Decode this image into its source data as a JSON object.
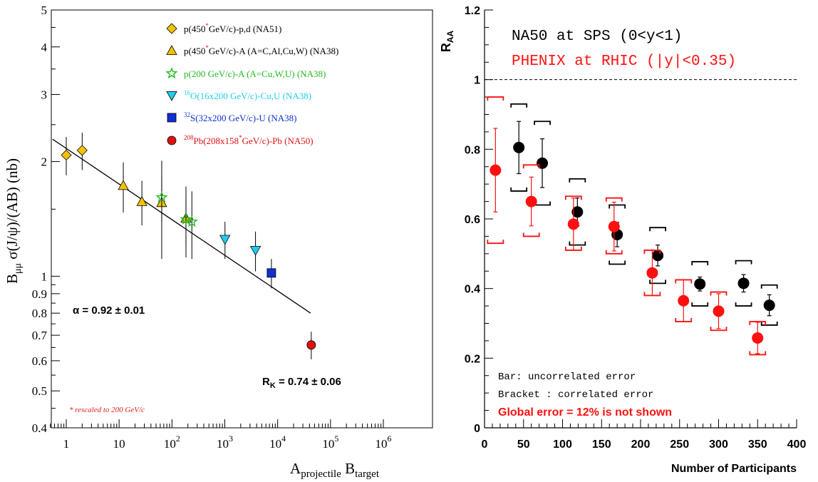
{
  "chart_data": [
    {
      "type": "scatter",
      "scale": "log-log",
      "ylabel": "B_μμ σ(J/ψ)/(AB) (nb)",
      "xlabel": "A_projectile B_target",
      "xlim": [
        0.5,
        1000000
      ],
      "ylim": [
        0.4,
        5
      ],
      "x_ticks": [
        "1",
        "10",
        "10^2",
        "10^3",
        "10^4",
        "10^5",
        "10^6"
      ],
      "y_ticks": [
        "0.4",
        "0.5",
        "0.6",
        "0.7",
        "0.8",
        "0.9",
        "1",
        "2",
        "3",
        "4",
        "5"
      ],
      "series": [
        {
          "name": "p(450* GeV/c)-p,d (NA51)",
          "marker": "diamond",
          "color": "#f2c200",
          "points": [
            {
              "x": 1,
              "y": 2.08,
              "err": 0.24
            },
            {
              "x": 2,
              "y": 2.14,
              "err": 0.24
            }
          ]
        },
        {
          "name": "p(450* GeV/c)-A (A=C,Al,Cu,W) (NA38)",
          "marker": "triangle-up",
          "color": "#f2c200",
          "points": [
            {
              "x": 12,
              "y": 1.73,
              "err": 0.26
            },
            {
              "x": 27,
              "y": 1.57,
              "err": 0.21
            },
            {
              "x": 64,
              "y": 1.56,
              "err": 0.45
            },
            {
              "x": 184,
              "y": 1.42,
              "err": 0.3
            }
          ]
        },
        {
          "name": "p(200 GeV/c)-A (A=Cu,W,U) (NA38)",
          "marker": "star",
          "color": "#22bb22",
          "points": [
            {
              "x": 64,
              "y": 1.61,
              "err": 0.22
            },
            {
              "x": 184,
              "y": 1.41,
              "err": 0.2
            },
            {
              "x": 238,
              "y": 1.39,
              "err": 0.28
            }
          ]
        },
        {
          "name": "16O(16x200 GeV/c)-Cu,U (NA38)",
          "marker": "triangle-down",
          "color": "#22ccee",
          "points": [
            {
              "x": 1008,
              "y": 1.25,
              "err": 0.14
            },
            {
              "x": 3808,
              "y": 1.17,
              "err": 0.14
            }
          ]
        },
        {
          "name": "32S(32x200 GeV/c)-U (NA38)",
          "marker": "square",
          "color": "#1030d0",
          "points": [
            {
              "x": 7616,
              "y": 1.02,
              "err": 0.09
            }
          ]
        },
        {
          "name": "208Pb(208x158* GeV/c)-Pb (NA50)",
          "marker": "circle",
          "color": "#e01010",
          "points": [
            {
              "x": 43264,
              "y": 0.66,
              "err": 0.055
            }
          ]
        }
      ],
      "fit_line": {
        "x": [
          0.55,
          42000
        ],
        "y": [
          2.29,
          0.8
        ]
      },
      "annotations": {
        "alpha": "α = 0.92 ± 0.01",
        "rk": "R_K = 0.74 ± 0.06",
        "rescaled": "* rescaled to 200 GeV/c"
      }
    },
    {
      "type": "scatter",
      "ylabel": "R_AA",
      "xlabel": "Number of Participants",
      "xlim": [
        0,
        400
      ],
      "ylim": [
        0,
        1.2
      ],
      "x_ticks": [
        "0",
        "50",
        "100",
        "150",
        "200",
        "250",
        "300",
        "350",
        "400"
      ],
      "y_ticks": [
        "0",
        "0.2",
        "0.4",
        "0.6",
        "0.8",
        "1",
        "1.2"
      ],
      "reference_line": 1,
      "legend_text": [
        "NA50 at SPS (0<y<1)",
        "PHENIX at RHIC (|y|<0.35)"
      ],
      "series": [
        {
          "name": "NA50 at SPS (0<y<1)",
          "color": "#000000",
          "points": [
            {
              "x": 44,
              "y": 0.805,
              "err": 0.075,
              "sys_lo": 0.68,
              "sys_hi": 0.93
            },
            {
              "x": 74,
              "y": 0.76,
              "err": 0.07,
              "sys_lo": 0.64,
              "sys_hi": 0.88
            },
            {
              "x": 119,
              "y": 0.62,
              "err": 0.04,
              "sys_lo": 0.525,
              "sys_hi": 0.715
            },
            {
              "x": 170,
              "y": 0.555,
              "err": 0.035,
              "sys_lo": 0.47,
              "sys_hi": 0.64
            },
            {
              "x": 222,
              "y": 0.495,
              "err": 0.03,
              "sys_lo": 0.415,
              "sys_hi": 0.575
            },
            {
              "x": 276,
              "y": 0.413,
              "err": 0.02,
              "sys_lo": 0.35,
              "sys_hi": 0.477
            },
            {
              "x": 332,
              "y": 0.415,
              "err": 0.025,
              "sys_lo": 0.35,
              "sys_hi": 0.48
            },
            {
              "x": 365,
              "y": 0.352,
              "err": 0.03,
              "sys_lo": 0.295,
              "sys_hi": 0.41
            }
          ]
        },
        {
          "name": "PHENIX at RHIC (|y|<0.35)",
          "color": "#ff1010",
          "points": [
            {
              "x": 14,
              "y": 0.74,
              "err": 0.12,
              "sys_lo": 0.53,
              "sys_hi": 0.95
            },
            {
              "x": 60,
              "y": 0.65,
              "err": 0.07,
              "sys_lo": 0.55,
              "sys_hi": 0.755
            },
            {
              "x": 114,
              "y": 0.585,
              "err": 0.075,
              "sys_lo": 0.51,
              "sys_hi": 0.665
            },
            {
              "x": 166,
              "y": 0.578,
              "err": 0.07,
              "sys_lo": 0.5,
              "sys_hi": 0.66
            },
            {
              "x": 215,
              "y": 0.445,
              "err": 0.065,
              "sys_lo": 0.38,
              "sys_hi": 0.51
            },
            {
              "x": 255,
              "y": 0.365,
              "err": 0.06,
              "sys_lo": 0.305,
              "sys_hi": 0.425
            },
            {
              "x": 300,
              "y": 0.335,
              "err": 0.05,
              "sys_lo": 0.28,
              "sys_hi": 0.39
            },
            {
              "x": 350,
              "y": 0.258,
              "err": 0.045,
              "sys_lo": 0.21,
              "sys_hi": 0.305
            }
          ]
        }
      ],
      "annotations": {
        "bar": "Bar: uncorrelated error",
        "bracket": "Bracket : correlated error",
        "global": "Global error = 12% is not shown"
      }
    }
  ]
}
